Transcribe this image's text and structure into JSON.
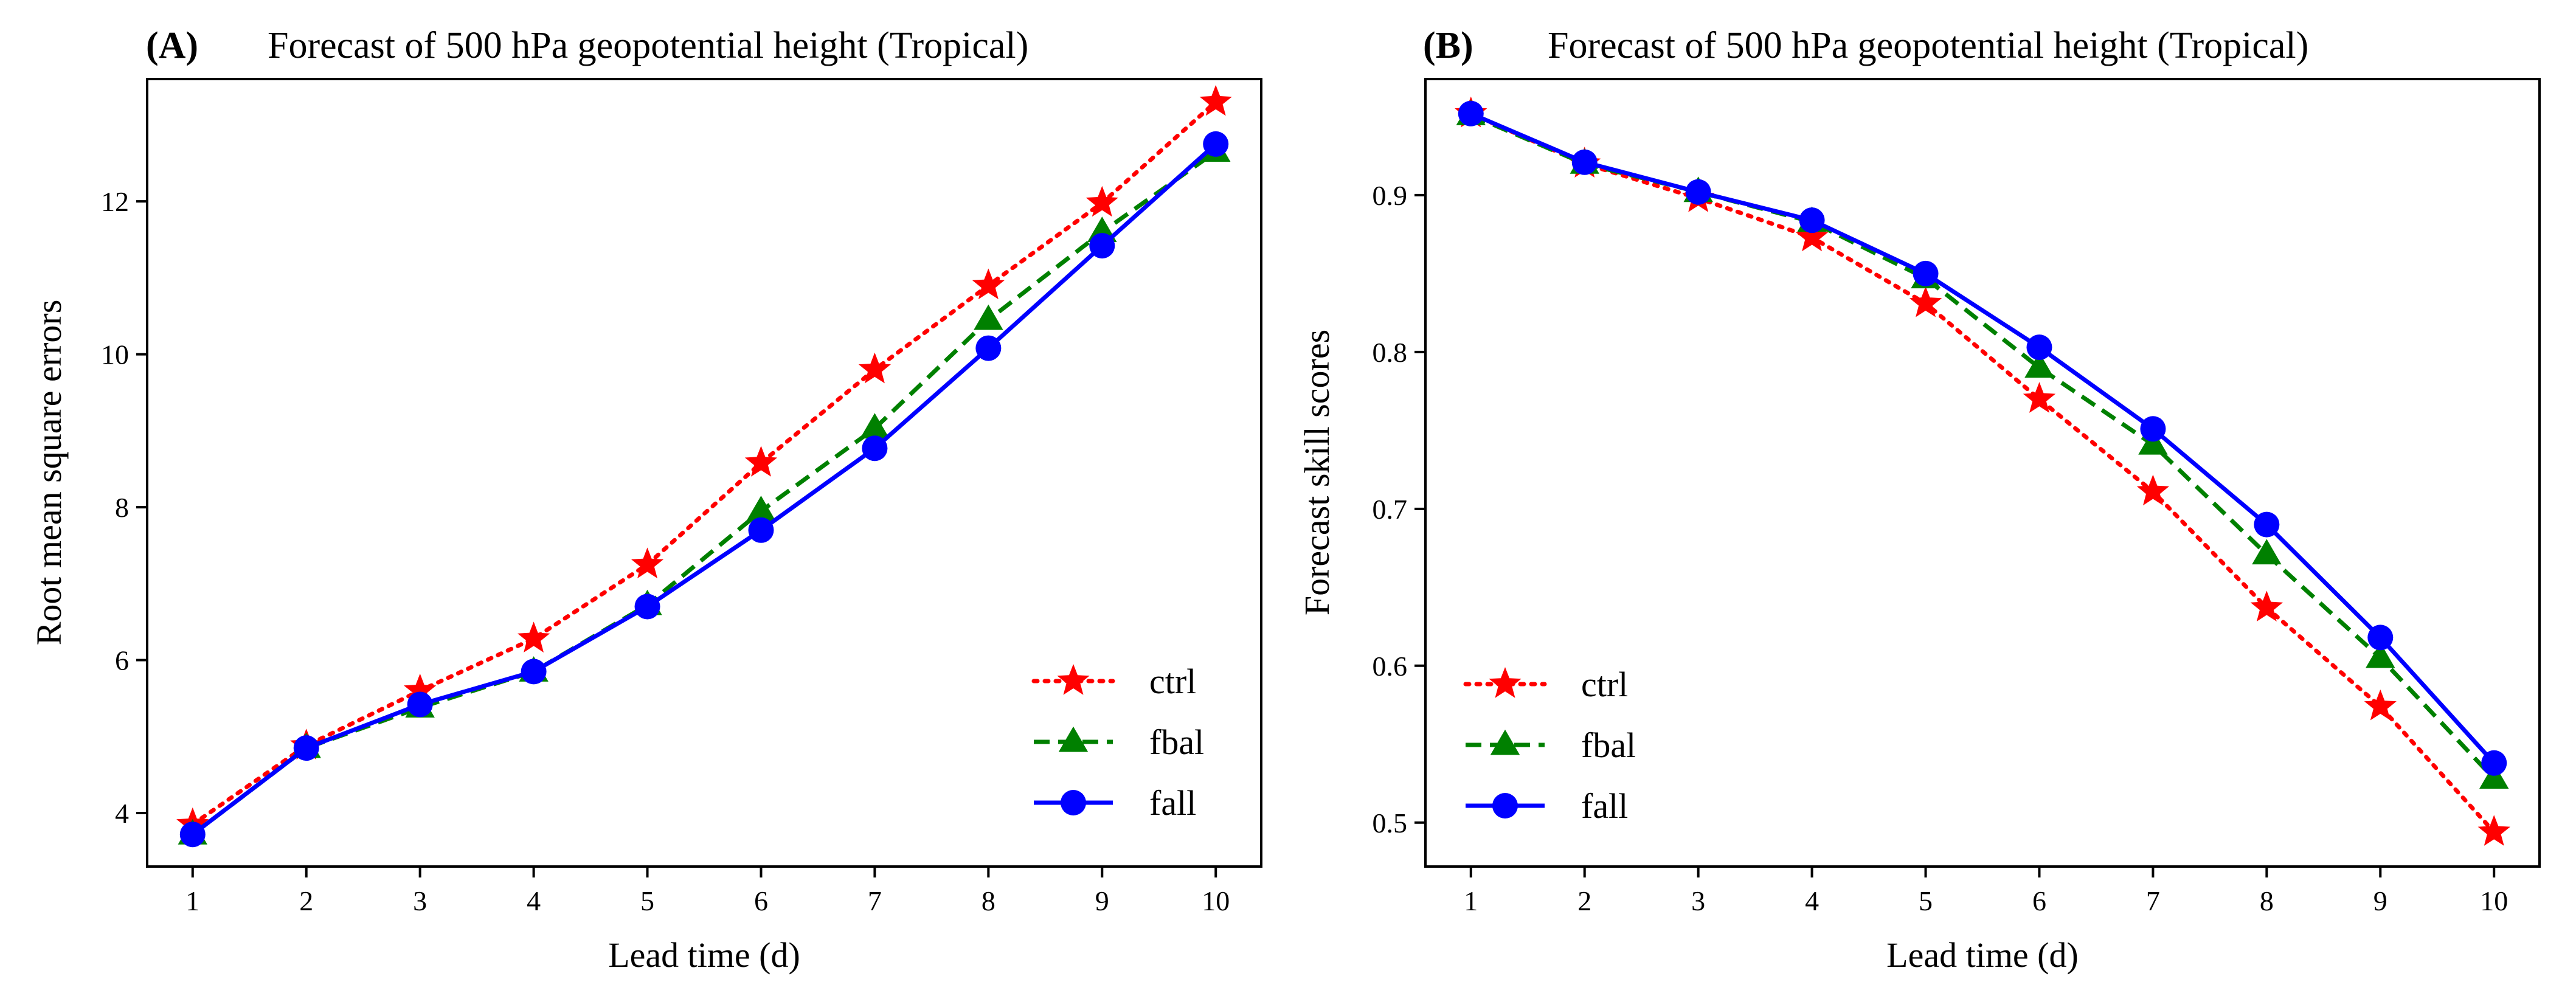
{
  "colors": {
    "ctrl": "#ff0000",
    "fbal": "#008000",
    "fall": "#0000ff",
    "axis": "#000000"
  },
  "chart_data": [
    {
      "type": "line",
      "panel": "(A)",
      "title": "Forecast of 500 hPa geopotential height (Tropical)",
      "xlabel": "Lead time (d)",
      "ylabel": "Root mean square errors",
      "x": [
        1,
        2,
        3,
        4,
        5,
        6,
        7,
        8,
        9,
        10
      ],
      "xticks": [
        "1",
        "2",
        "3",
        "4",
        "5",
        "6",
        "7",
        "8",
        "9",
        "10"
      ],
      "yticks": [
        4,
        6,
        8,
        10,
        12
      ],
      "ytick_labels": [
        "4",
        "6",
        "8",
        "10",
        "12"
      ],
      "xlim": [
        0.6,
        10.4
      ],
      "ylim": [
        3.3,
        13.6
      ],
      "legend_position": "lower-right",
      "series": [
        {
          "name": "ctrl",
          "marker": "star",
          "linestyle": "dotted",
          "values": [
            3.85,
            4.88,
            5.6,
            6.28,
            7.25,
            8.58,
            9.8,
            10.9,
            11.98,
            13.3
          ]
        },
        {
          "name": "fbal",
          "marker": "triangle",
          "linestyle": "dashed",
          "values": [
            3.72,
            4.85,
            5.38,
            5.85,
            6.72,
            7.95,
            9.03,
            10.45,
            11.6,
            12.65
          ]
        },
        {
          "name": "fall",
          "marker": "circle",
          "linestyle": "solid",
          "values": [
            3.72,
            4.85,
            5.42,
            5.85,
            6.7,
            7.7,
            8.77,
            10.08,
            11.42,
            12.75
          ]
        }
      ]
    },
    {
      "type": "line",
      "panel": "(B)",
      "title": "Forecast of 500 hPa geopotential height (Tropical)",
      "xlabel": "Lead time (d)",
      "ylabel": "Forecast skill scores",
      "x": [
        1,
        2,
        3,
        4,
        5,
        6,
        7,
        8,
        9,
        10
      ],
      "xticks": [
        "1",
        "2",
        "3",
        "4",
        "5",
        "6",
        "7",
        "8",
        "9",
        "10"
      ],
      "yticks": [
        0.5,
        0.6,
        0.7,
        0.8,
        0.9
      ],
      "ytick_labels": [
        "0.5",
        "0.6",
        "0.7",
        "0.8",
        "0.9"
      ],
      "xlim": [
        0.6,
        10.4
      ],
      "ylim": [
        0.472,
        0.974
      ],
      "legend_position": "lower-left",
      "series": [
        {
          "name": "ctrl",
          "marker": "star",
          "linestyle": "dotted",
          "values": [
            0.952,
            0.92,
            0.898,
            0.873,
            0.831,
            0.77,
            0.711,
            0.637,
            0.574,
            0.494
          ]
        },
        {
          "name": "fbal",
          "marker": "triangle",
          "linestyle": "dashed",
          "values": [
            0.951,
            0.92,
            0.902,
            0.883,
            0.847,
            0.79,
            0.741,
            0.671,
            0.605,
            0.528
          ]
        },
        {
          "name": "fall",
          "marker": "circle",
          "linestyle": "solid",
          "values": [
            0.952,
            0.921,
            0.902,
            0.884,
            0.85,
            0.803,
            0.751,
            0.69,
            0.618,
            0.538
          ]
        }
      ]
    }
  ]
}
